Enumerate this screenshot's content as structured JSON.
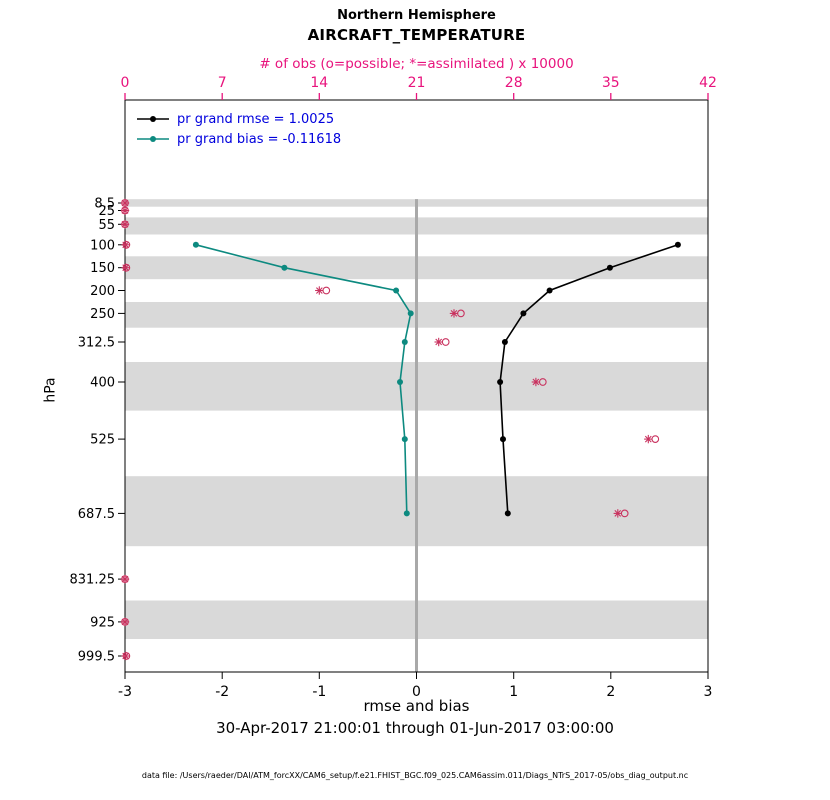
{
  "chart_data": {
    "type": "line",
    "chart_kind": "vertical-pressure-profile",
    "title_line1": "Northern Hemisphere",
    "title_line2": "AIRCRAFT_TEMPERATURE",
    "top_xlabel": "# of obs (o=possible; *=assimilated ) x 10000",
    "xlabel": "rmse and bias",
    "ylabel": "hPa",
    "timespan": "30-Apr-2017 21:00:01 through 01-Jun-2017 03:00:00",
    "datafile": "data file: /Users/raeder/DAI/ATM_forcXX/CAM6_setup/f.e21.FHIST_BGC.f09_025.CAM6assim.011/Diags_NTrS_2017-05/obs_diag_output.nc",
    "xlim": [
      -3,
      3
    ],
    "x_ticks": [
      -3,
      -2,
      -1,
      0,
      1,
      2,
      3
    ],
    "top_xlim": [
      0,
      42
    ],
    "top_ticks": [
      0,
      7,
      14,
      21,
      28,
      35,
      42
    ],
    "levels_hpa": [
      8.5,
      25,
      55,
      100,
      150,
      200,
      250,
      312.5,
      400,
      525,
      687.5,
      831.25,
      925,
      999.5
    ],
    "legend": [
      {
        "label": "pr grand rmse = 1.0025",
        "series": "rmse",
        "color": "#000000"
      },
      {
        "label": "pr grand bias = -0.11618",
        "series": "bias",
        "color": "#0d8a80"
      }
    ],
    "legend_text_color": "#0000dd",
    "legend_position": "top-left-inside",
    "series": [
      {
        "name": "rmse",
        "color": "#000000",
        "values": [
          null,
          null,
          null,
          2.69,
          1.99,
          1.37,
          1.1,
          0.91,
          0.86,
          0.89,
          0.94,
          null,
          null,
          null
        ]
      },
      {
        "name": "bias",
        "color": "#0d8a80",
        "values": [
          null,
          null,
          null,
          -2.27,
          -1.36,
          -0.21,
          -0.06,
          -0.12,
          -0.17,
          -0.12,
          -0.1,
          null,
          null,
          null
        ]
      }
    ],
    "obs_counts_x10000": {
      "color": "#c9325f",
      "possible": [
        0,
        0,
        0,
        0.1,
        0.1,
        14.5,
        24.2,
        23.1,
        30.1,
        38.2,
        36.0,
        0,
        0,
        0.1
      ],
      "assimilated": [
        0,
        0,
        0,
        0.05,
        0.05,
        14.0,
        23.7,
        22.6,
        29.6,
        37.7,
        35.5,
        0,
        0,
        0.05
      ]
    },
    "top_axis_color": "#e8137d",
    "shaded_band_color": "#d9d9d9",
    "zero_line_color": "#a9a9a9",
    "grid": false
  }
}
